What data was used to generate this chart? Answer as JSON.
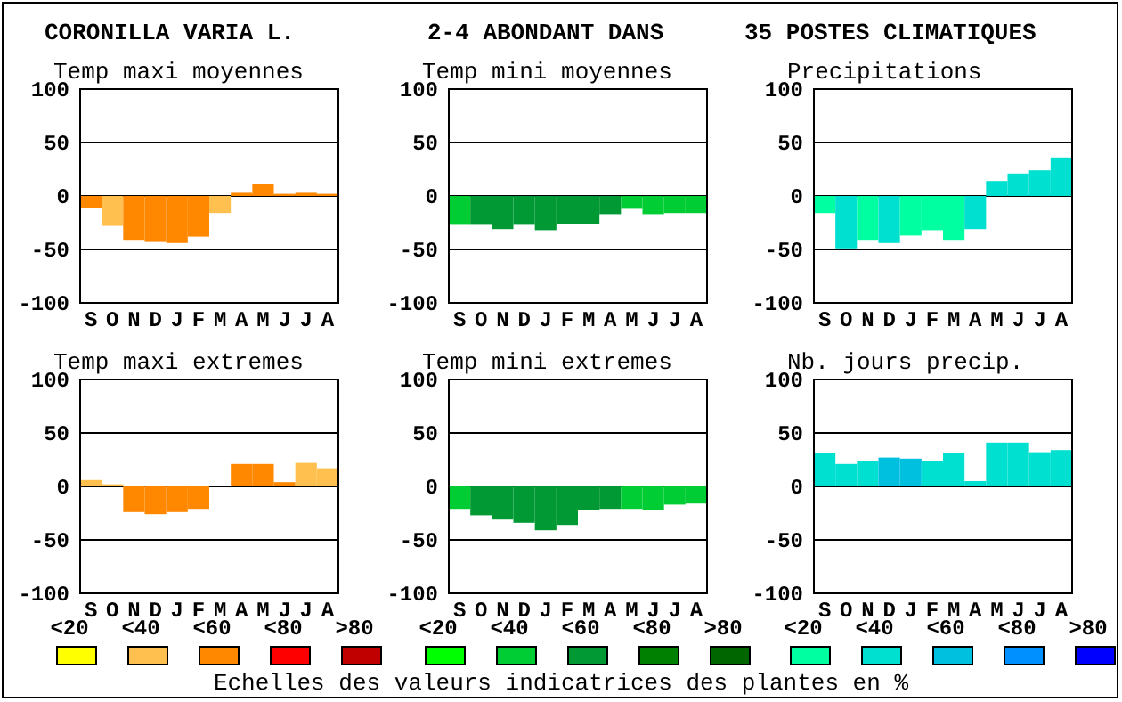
{
  "chart_data": [
    {
      "type": "bar",
      "title": "Temp maxi moyennes",
      "annotations": [
        "CORONILLA VARIA L."
      ],
      "categories": [
        "S",
        "O",
        "N",
        "D",
        "J",
        "F",
        "M",
        "A",
        "M",
        "J",
        "J",
        "A"
      ],
      "values": [
        -11,
        -28,
        -41,
        -43,
        -44,
        -38,
        -16,
        3,
        11,
        2,
        3,
        2
      ],
      "colors": [
        "#ff8800",
        "#ffc050",
        "#ff8800",
        "#ff8800",
        "#ff8800",
        "#ff8800",
        "#ffc050",
        "#ff8800",
        "#ff8800",
        "#ff8800",
        "#ff8800",
        "#ff8800"
      ],
      "ylim": [
        -100,
        100
      ],
      "yticks": [
        -100,
        -50,
        0,
        50,
        100
      ],
      "grid": "y"
    },
    {
      "type": "bar",
      "title": "Temp mini moyennes",
      "annotations": [
        "2-4 ABONDANT DANS"
      ],
      "categories": [
        "S",
        "O",
        "N",
        "D",
        "J",
        "F",
        "M",
        "A",
        "M",
        "J",
        "J",
        "A"
      ],
      "values": [
        -27,
        -27,
        -31,
        -27,
        -32,
        -26,
        -26,
        -17,
        -12,
        -17,
        -16,
        -16
      ],
      "colors": [
        "#00cc33",
        "#009933",
        "#009933",
        "#009933",
        "#009933",
        "#009933",
        "#009933",
        "#009933",
        "#00cc33",
        "#00cc33",
        "#00cc33",
        "#00cc33"
      ],
      "ylim": [
        -100,
        100
      ],
      "yticks": [
        -100,
        -50,
        0,
        50,
        100
      ],
      "grid": "y"
    },
    {
      "type": "bar",
      "title": "Precipitations",
      "annotations": [
        "35 POSTES CLIMATIQUES"
      ],
      "categories": [
        "S",
        "O",
        "N",
        "D",
        "J",
        "F",
        "M",
        "A",
        "M",
        "J",
        "J",
        "A"
      ],
      "values": [
        -16,
        -49,
        -41,
        -44,
        -37,
        -32,
        -41,
        -31,
        14,
        21,
        24,
        36
      ],
      "colors": [
        "#00ffa0",
        "#00e0d0",
        "#00ffa0",
        "#00e0d0",
        "#00ffa0",
        "#00ffa0",
        "#00ffa0",
        "#00e0d0",
        "#00e0d0",
        "#00e0d0",
        "#00e0d0",
        "#00e0d0"
      ],
      "ylim": [
        -100,
        100
      ],
      "yticks": [
        -100,
        -50,
        0,
        50,
        100
      ],
      "grid": "y"
    },
    {
      "type": "bar",
      "title": "Temp maxi extremes",
      "annotations": [
        "<20",
        "<40",
        "<60",
        "<80",
        ">80"
      ],
      "categories": [
        "S",
        "O",
        "N",
        "D",
        "J",
        "F",
        "M",
        "A",
        "M",
        "J",
        "J",
        "A"
      ],
      "values": [
        6,
        2,
        -24,
        -26,
        -24,
        -21,
        0,
        21,
        21,
        4,
        22,
        17
      ],
      "colors": [
        "#ffc050",
        "#ffc050",
        "#ff8800",
        "#ff8800",
        "#ff8800",
        "#ff8800",
        "#ff8800",
        "#ff8800",
        "#ff8800",
        "#ff8800",
        "#ffc050",
        "#ffc050"
      ],
      "ylim": [
        -100,
        100
      ],
      "yticks": [
        -100,
        -50,
        0,
        50,
        100
      ],
      "grid": "y"
    },
    {
      "type": "bar",
      "title": "Temp mini extremes",
      "annotations": [
        "<20",
        "<40",
        "<60",
        "<80",
        ">80",
        "Echelles des valeurs indicatrices des plantes en %"
      ],
      "categories": [
        "S",
        "O",
        "N",
        "D",
        "J",
        "F",
        "M",
        "A",
        "M",
        "J",
        "J",
        "A"
      ],
      "values": [
        -21,
        -27,
        -31,
        -34,
        -41,
        -36,
        -22,
        -21,
        -21,
        -22,
        -17,
        -16
      ],
      "colors": [
        "#00cc33",
        "#009933",
        "#009933",
        "#009933",
        "#009933",
        "#009933",
        "#009933",
        "#009933",
        "#00cc33",
        "#00cc33",
        "#00cc33",
        "#00cc33"
      ],
      "ylim": [
        -100,
        100
      ],
      "yticks": [
        -100,
        -50,
        0,
        50,
        100
      ],
      "grid": "y"
    },
    {
      "type": "bar",
      "title": "Nb. jours precip.",
      "annotations": [
        "<20",
        "<40",
        "<60",
        "<80",
        ">80"
      ],
      "categories": [
        "S",
        "O",
        "N",
        "D",
        "J",
        "F",
        "M",
        "A",
        "M",
        "J",
        "J",
        "A"
      ],
      "values": [
        31,
        21,
        24,
        27,
        26,
        24,
        31,
        5,
        41,
        41,
        32,
        34
      ],
      "colors": [
        "#00e0d0",
        "#00e0d0",
        "#00e0d0",
        "#00c0e0",
        "#00c0e0",
        "#00e0d0",
        "#00e0d0",
        "#00e0d0",
        "#00e0d0",
        "#00e0d0",
        "#00e0d0",
        "#00e0d0"
      ],
      "ylim": [
        -100,
        100
      ],
      "yticks": [
        -100,
        -50,
        0,
        50,
        100
      ],
      "grid": "y"
    }
  ]
}
